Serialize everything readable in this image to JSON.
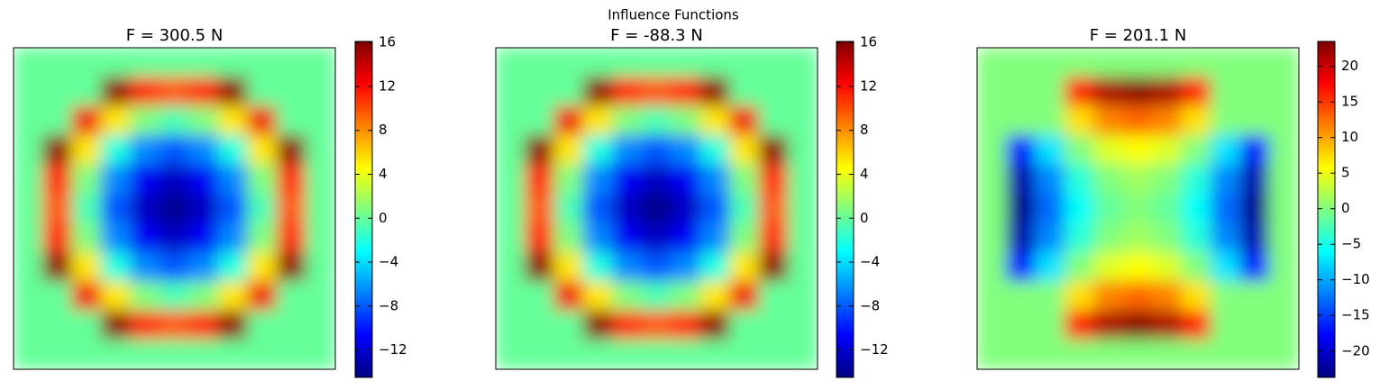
{
  "title": "Influence Functions",
  "chart_data": [
    {
      "type": "heatmap",
      "title": "F = 300.5 N",
      "colormap": "jet",
      "values": [
        [
          0,
          0,
          0,
          0,
          0,
          0,
          0,
          0,
          0,
          0,
          0
        ],
        [
          0,
          0,
          0,
          15.6,
          11.2,
          9.7,
          11.2,
          15.6,
          0,
          0,
          0
        ],
        [
          0,
          0,
          12.7,
          5.3,
          0.8,
          -0.7,
          0.8,
          5.3,
          12.7,
          0,
          0
        ],
        [
          0,
          15.6,
          5.3,
          -2.1,
          -6.6,
          -8.1,
          -6.6,
          -2.1,
          5.3,
          15.6,
          0
        ],
        [
          0,
          11.2,
          0.8,
          -6.6,
          -11.0,
          -12.5,
          -11.0,
          -6.6,
          0.8,
          11.2,
          0
        ],
        [
          0,
          9.7,
          -0.7,
          -8.1,
          -12.5,
          -14,
          -12.5,
          -8.1,
          -0.7,
          9.7,
          0
        ],
        [
          0,
          11.2,
          0.8,
          -6.6,
          -11.0,
          -12.5,
          -11.0,
          -6.6,
          0.8,
          11.2,
          0
        ],
        [
          0,
          15.6,
          5.3,
          -2.1,
          -6.6,
          -8.1,
          -6.6,
          -2.1,
          5.3,
          15.6,
          0
        ],
        [
          0,
          0,
          12.7,
          5.3,
          0.8,
          -0.7,
          0.8,
          5.3,
          12.7,
          0,
          0
        ],
        [
          0,
          0,
          0,
          15.6,
          11.2,
          9.7,
          11.2,
          15.6,
          0,
          0,
          0
        ],
        [
          0,
          0,
          0,
          0,
          0,
          0,
          0,
          0,
          0,
          0,
          0
        ]
      ],
      "ylim": [
        -14.5,
        16.1
      ],
      "yticks": [
        {
          "value": -12,
          "label": "−12"
        },
        {
          "value": -8,
          "label": "−8"
        },
        {
          "value": -4,
          "label": "−4"
        },
        0,
        4,
        8,
        12,
        16
      ]
    },
    {
      "type": "heatmap",
      "title": "F = -88.3 N",
      "colormap": "jet",
      "values": [
        [
          0,
          0,
          0,
          0,
          0,
          0,
          0,
          0,
          0,
          0,
          0
        ],
        [
          0,
          0,
          0,
          15.6,
          11.2,
          9.7,
          11.2,
          15.6,
          0,
          0,
          0
        ],
        [
          0,
          0,
          12.7,
          5.3,
          0.8,
          -0.7,
          0.8,
          5.3,
          12.7,
          0,
          0
        ],
        [
          0,
          15.6,
          5.3,
          -2.1,
          -6.6,
          -8.1,
          -6.6,
          -2.1,
          5.3,
          15.6,
          0
        ],
        [
          0,
          11.2,
          0.8,
          -6.6,
          -11.0,
          -12.5,
          -11.0,
          -6.6,
          0.8,
          11.2,
          0
        ],
        [
          0,
          9.7,
          -0.7,
          -8.1,
          -12.5,
          -14.3,
          -12.5,
          -8.1,
          -0.7,
          9.7,
          0
        ],
        [
          0,
          11.2,
          0.8,
          -6.6,
          -11.0,
          -12.5,
          -11.0,
          -6.6,
          0.8,
          11.2,
          0
        ],
        [
          0,
          15.6,
          5.3,
          -2.1,
          -6.6,
          -8.1,
          -6.6,
          -2.1,
          5.3,
          15.6,
          0
        ],
        [
          0,
          0,
          12.7,
          5.3,
          0.8,
          -0.7,
          0.8,
          5.3,
          12.7,
          0,
          0
        ],
        [
          0,
          0,
          0,
          15.6,
          11.2,
          9.7,
          11.2,
          15.6,
          0,
          0,
          0
        ],
        [
          0,
          0,
          0,
          0,
          0,
          0,
          0,
          0,
          0,
          0,
          0
        ]
      ],
      "ylim": [
        -14.5,
        16.1
      ],
      "yticks": [
        {
          "value": -12,
          "label": "−12"
        },
        {
          "value": -8,
          "label": "−8"
        },
        {
          "value": -4,
          "label": "−4"
        },
        0,
        4,
        8,
        12,
        16
      ]
    },
    {
      "type": "heatmap",
      "title": "F = 201.1 N",
      "colormap": "jet",
      "values": [
        [
          0,
          0,
          0,
          0,
          0,
          0,
          0,
          0,
          0,
          0,
          0
        ],
        [
          0,
          0,
          0,
          17.2,
          21.5,
          23.0,
          21.5,
          17.2,
          0,
          0,
          0
        ],
        [
          0,
          0,
          0,
          7.2,
          11.5,
          12.9,
          11.5,
          7.2,
          0,
          0,
          0
        ],
        [
          0,
          -17.2,
          -7.2,
          0,
          4.3,
          5.7,
          4.3,
          0,
          -7.2,
          -17.2,
          0
        ],
        [
          0,
          -21.5,
          -11.5,
          -4.3,
          0,
          1.4,
          0,
          -4.3,
          -11.5,
          -21.5,
          0
        ],
        [
          0,
          -23.0,
          -12.9,
          -5.7,
          -1.4,
          0,
          -1.4,
          -5.7,
          -12.9,
          -23.0,
          0
        ],
        [
          0,
          -21.5,
          -11.5,
          -4.3,
          0,
          1.4,
          0,
          -4.3,
          -11.5,
          -21.5,
          0
        ],
        [
          0,
          -17.2,
          -7.2,
          0,
          4.3,
          5.7,
          4.3,
          0,
          -7.2,
          -17.2,
          0
        ],
        [
          0,
          0,
          0,
          7.2,
          11.5,
          12.9,
          11.5,
          7.2,
          0,
          0,
          0
        ],
        [
          0,
          0,
          0,
          17.2,
          21.5,
          23.0,
          21.5,
          17.2,
          0,
          0,
          0
        ],
        [
          0,
          0,
          0,
          0,
          0,
          0,
          0,
          0,
          0,
          0,
          0
        ]
      ],
      "ylim": [
        -23.7,
        23.5
      ],
      "yticks": [
        {
          "value": -20,
          "label": "−20"
        },
        {
          "value": -15,
          "label": "−15"
        },
        {
          "value": -10,
          "label": "−10"
        },
        {
          "value": -5,
          "label": "−5"
        },
        0,
        5,
        10,
        15,
        20
      ]
    }
  ]
}
